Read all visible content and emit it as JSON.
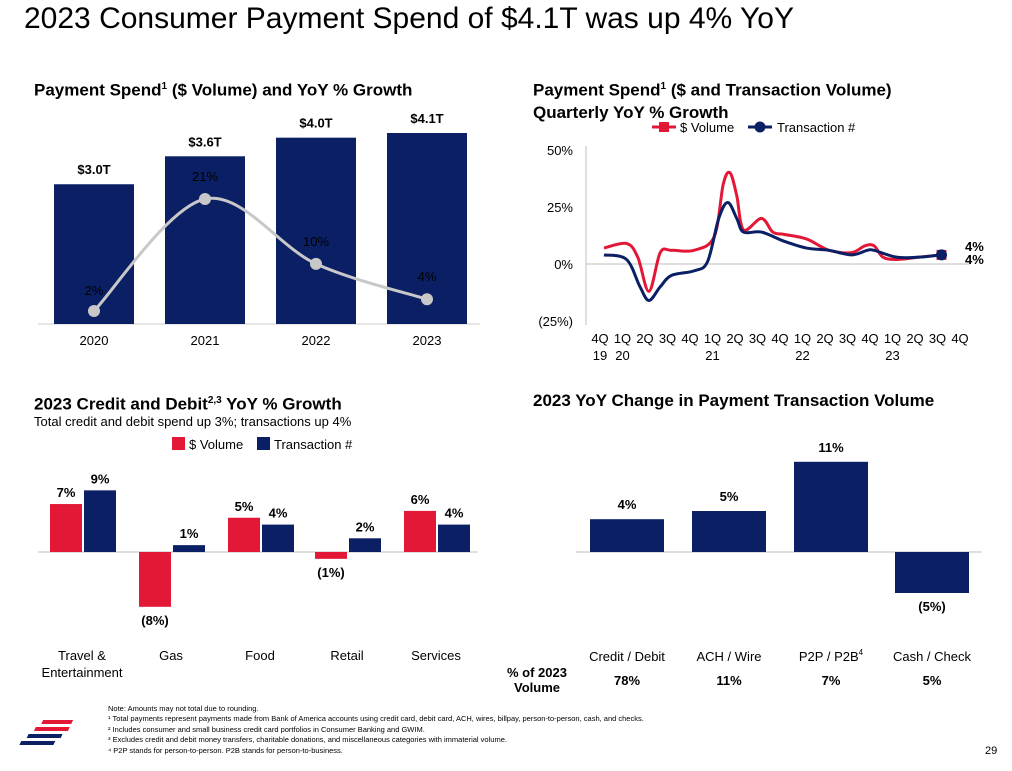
{
  "page": {
    "title": "2023 Consumer Payment Spend of $4.1T was up 4% YoY",
    "page_number": "29"
  },
  "chart_data": [
    {
      "id": "annual",
      "type": "bar",
      "title": "Payment Spend",
      "title_sup": "1",
      "title_rest": " ($ Volume) and YoY % Growth",
      "categories": [
        "2020",
        "2021",
        "2022",
        "2023"
      ],
      "values": [
        3.0,
        3.6,
        4.0,
        4.1
      ],
      "value_labels": [
        "$3.0T",
        "$3.6T",
        "$4.0T",
        "$4.1T"
      ],
      "ylim": [
        0,
        4.1
      ],
      "overlay_line": {
        "name": "YoY % Growth",
        "values": [
          2,
          21,
          10,
          4
        ],
        "labels": [
          "2%",
          "21%",
          "10%",
          "4%"
        ]
      },
      "colors": {
        "bar": "#0b1f65",
        "line": "#c8c8c8"
      }
    },
    {
      "id": "quarterly",
      "type": "line",
      "title_line1": "Payment Spend",
      "title_sup": "1",
      "title_line1_rest": " ($ and Transaction Volume)",
      "title_line2": "Quarterly YoY % Growth",
      "x": [
        "4Q19",
        "1Q20",
        "2Q20",
        "3Q20",
        "4Q20",
        "1Q21",
        "2Q21",
        "3Q21",
        "4Q21",
        "1Q22",
        "2Q22",
        "3Q22",
        "4Q22",
        "1Q23",
        "2Q23",
        "3Q23",
        "4Q23"
      ],
      "xtick_top": [
        "4Q",
        "1Q",
        "2Q",
        "3Q",
        "4Q",
        "1Q",
        "2Q",
        "3Q",
        "4Q",
        "1Q",
        "2Q",
        "3Q",
        "4Q",
        "1Q",
        "2Q",
        "3Q",
        "4Q"
      ],
      "xtick_bottom": [
        "19",
        "20",
        "",
        "",
        "",
        "21",
        "",
        "",
        "",
        "22",
        "",
        "",
        "",
        "23",
        "",
        "",
        ""
      ],
      "yticks": [
        "50%",
        "25%",
        "0%",
        "(25%)"
      ],
      "ylim": [
        -25,
        50
      ],
      "series": [
        {
          "name": "$ Volume",
          "color": "#e31837",
          "points": [
            [
              0,
              7
            ],
            [
              1.0,
              9
            ],
            [
              1.5,
              3
            ],
            [
              2.0,
              -12
            ],
            [
              2.5,
              5
            ],
            [
              3.0,
              6
            ],
            [
              4.0,
              6
            ],
            [
              4.9,
              12
            ],
            [
              5.3,
              35
            ],
            [
              5.6,
              40
            ],
            [
              5.9,
              30
            ],
            [
              6.2,
              15
            ],
            [
              7.0,
              20
            ],
            [
              7.5,
              14
            ],
            [
              8.0,
              13
            ],
            [
              9.0,
              11
            ],
            [
              10.0,
              6
            ],
            [
              11.0,
              5
            ],
            [
              11.6,
              8
            ],
            [
              12.0,
              8
            ],
            [
              12.4,
              3
            ],
            [
              13.0,
              2
            ],
            [
              14.0,
              3
            ],
            [
              15.0,
              4
            ]
          ],
          "end_label": "4%"
        },
        {
          "name": "Transaction #",
          "color": "#0b1f65",
          "points": [
            [
              0,
              4
            ],
            [
              1.0,
              2
            ],
            [
              1.6,
              -10
            ],
            [
              2.0,
              -16
            ],
            [
              2.5,
              -10
            ],
            [
              3.0,
              -5
            ],
            [
              4.0,
              -3
            ],
            [
              4.6,
              1
            ],
            [
              5.1,
              20
            ],
            [
              5.5,
              27
            ],
            [
              5.9,
              20
            ],
            [
              6.2,
              14
            ],
            [
              7.0,
              14
            ],
            [
              8.0,
              10
            ],
            [
              9.0,
              7
            ],
            [
              10.0,
              6
            ],
            [
              11.0,
              4
            ],
            [
              11.7,
              6
            ],
            [
              12.0,
              6
            ],
            [
              13.0,
              3
            ],
            [
              14.0,
              3
            ],
            [
              15.0,
              4
            ]
          ],
          "end_label": "4%"
        }
      ]
    },
    {
      "id": "credit_debit",
      "type": "bar",
      "title": "2023 Credit and Debit",
      "title_sup": "2,3",
      "title_rest": " YoY % Growth",
      "subtitle": "Total credit and debit spend up 3%; transactions up 4%",
      "categories": [
        "Travel & Entertainment",
        "Gas",
        "Food",
        "Retail",
        "Services"
      ],
      "category_lines": [
        [
          "Travel &",
          "Entertainment"
        ],
        [
          "Gas"
        ],
        [
          "Food"
        ],
        [
          "Retail"
        ],
        [
          "Services"
        ]
      ],
      "ylim": [
        -8,
        9
      ],
      "series": [
        {
          "name": "$ Volume",
          "color": "#e31837",
          "values": [
            7,
            -8,
            5,
            -1,
            6
          ],
          "labels": [
            "7%",
            "(8%)",
            "5%",
            "(1%)",
            "6%"
          ]
        },
        {
          "name": "Transaction #",
          "color": "#0b1f65",
          "values": [
            9,
            1,
            4,
            2,
            4
          ],
          "labels": [
            "9%",
            "1%",
            "4%",
            "2%",
            "4%"
          ]
        }
      ]
    },
    {
      "id": "transaction_volume",
      "type": "bar",
      "title": "2023 YoY Change in Payment Transaction Volume",
      "categories": [
        "Credit / Debit",
        "ACH / Wire",
        "P2P / P2B",
        "Cash / Check"
      ],
      "category_sups": [
        "",
        "",
        "4",
        ""
      ],
      "values": [
        4,
        5,
        11,
        -5
      ],
      "value_labels": [
        "4%",
        "5%",
        "11%",
        "(5%)"
      ],
      "ylim": [
        -5,
        11
      ],
      "share_label_line1": "% of 2023",
      "share_label_line2": "Volume",
      "share_values": [
        "78%",
        "11%",
        "7%",
        "5%"
      ],
      "colors": {
        "bar": "#0b1f65",
        "share_text": "#1f5fbf"
      }
    }
  ],
  "footnotes": [
    "Note: Amounts may not total due to rounding.",
    "¹ Total payments represent payments made from Bank of America accounts using credit card, debit card, ACH, wires, billpay, person-to-person, cash, and checks.",
    "² Includes consumer and small business credit card portfolios in Consumer Banking and GWIM.",
    "³ Excludes credit and debit money transfers, charitable donations, and miscellaneous categories with immaterial volume.",
    "⁴ P2P stands for person-to-person. P2B stands for person-to-business."
  ]
}
